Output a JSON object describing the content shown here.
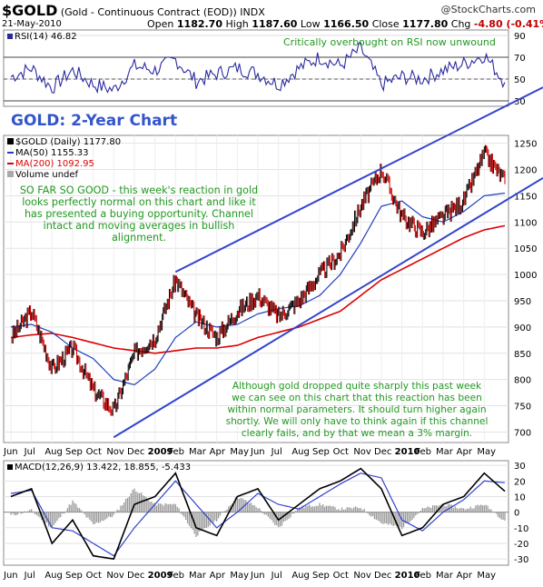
{
  "header": {
    "ticker": "$GOLD",
    "description": "(Gold - Continuous Contract (EOD))",
    "index": "INDX",
    "date": "21-May-2010",
    "open_label": "Open",
    "open": "1182.70",
    "high_label": "High",
    "high": "1187.60",
    "low_label": "Low",
    "low": "1166.50",
    "close_label": "Close",
    "close": "1177.80",
    "chg_label": "Chg",
    "chg": "-4.80 (-0.41%)",
    "brand": "@StockCharts.com"
  },
  "rsi_panel": {
    "label": "RSI(14) 46.82",
    "annotation": "Critically overbought on RSI now unwound",
    "chart_title": "GOLD: 2-Year Chart"
  },
  "price_panel": {
    "legend_main": "$GOLD (Daily) 1177.80",
    "legend_ma50": "MA(50) 1155.33",
    "legend_ma200": "MA(200) 1092.95",
    "legend_volume": "Volume undef",
    "annotation_1": [
      "SO FAR SO GOOD - this week's reaction in gold",
      "looks perfectly normal on this chart and like it",
      "has presented a buying opportunity. Channel",
      "intact and moving averages in bullish",
      "alignment."
    ],
    "annotation_2": [
      "Although gold dropped quite sharply this past week",
      "we can see on this chart that this reaction has been",
      "within normal parameters. It should turn higher again",
      "shortly. We will only have to think again if this channel",
      "clearly fails, and by that we mean a 3% margin."
    ]
  },
  "macd_panel": {
    "label": "MACD(12,26,9) 13.422, 18.855, -5.433"
  },
  "colors": {
    "up": "#000000",
    "down": "#cc0000",
    "ma50": "#1f3fbf",
    "ma200": "#dd0000",
    "channel": "#3344cc",
    "annotation": "#229922",
    "rsi": "#2a2aa0",
    "macd": "#000000",
    "signal": "#3344cc",
    "hist": "#999999"
  },
  "chart_data": [
    {
      "type": "line",
      "name": "RSI(14)",
      "y_ticks": [
        30,
        50,
        70,
        90
      ],
      "reference_lines": [
        30,
        50,
        70
      ],
      "ylim": [
        25,
        95
      ],
      "x": [
        "2008-06",
        "2008-07",
        "2008-08",
        "2008-09",
        "2008-10",
        "2008-11",
        "2008-12",
        "2009-01",
        "2009-02",
        "2009-03",
        "2009-04",
        "2009-05",
        "2009-06",
        "2009-07",
        "2009-08",
        "2009-09",
        "2009-10",
        "2009-11",
        "2009-12",
        "2010-01",
        "2010-02",
        "2010-03",
        "2010-04",
        "2010-05",
        "2010-05-21"
      ],
      "values": [
        52,
        60,
        42,
        58,
        45,
        40,
        62,
        58,
        68,
        48,
        55,
        60,
        55,
        45,
        60,
        70,
        62,
        78,
        45,
        52,
        50,
        58,
        64,
        72,
        47
      ]
    },
    {
      "type": "candlestick",
      "name": "$GOLD (Daily)",
      "y_ticks": [
        700,
        750,
        800,
        850,
        900,
        950,
        1000,
        1050,
        1100,
        1150,
        1200,
        1250
      ],
      "ylim": [
        680,
        1265
      ],
      "x_labels": [
        "Jun",
        "Jul",
        "Aug",
        "Sep",
        "Oct",
        "Nov",
        "Dec",
        "2009",
        "Feb",
        "Mar",
        "Apr",
        "May",
        "Jun",
        "Jul",
        "Aug",
        "Sep",
        "Oct",
        "Nov",
        "Dec",
        "2010",
        "Feb",
        "Mar",
        "Apr",
        "May"
      ],
      "x": [
        "2008-06",
        "2008-07",
        "2008-08",
        "2008-09",
        "2008-10",
        "2008-11",
        "2008-12",
        "2009-01",
        "2009-02",
        "2009-03",
        "2009-04",
        "2009-05",
        "2009-06",
        "2009-07",
        "2009-08",
        "2009-09",
        "2009-10",
        "2009-11",
        "2009-12",
        "2010-01",
        "2010-02",
        "2010-03",
        "2010-04",
        "2010-05",
        "2010-05-21"
      ],
      "close": [
        880,
        930,
        820,
        860,
        780,
        740,
        850,
        880,
        990,
        920,
        880,
        930,
        960,
        920,
        950,
        1000,
        1040,
        1130,
        1200,
        1110,
        1080,
        1110,
        1140,
        1230,
        1178
      ],
      "ma50": [
        900,
        905,
        890,
        860,
        840,
        800,
        790,
        820,
        880,
        910,
        900,
        905,
        925,
        935,
        940,
        960,
        1000,
        1060,
        1130,
        1140,
        1110,
        1100,
        1120,
        1150,
        1155
      ],
      "ma200": [
        880,
        885,
        888,
        880,
        870,
        860,
        855,
        850,
        855,
        860,
        860,
        865,
        880,
        890,
        900,
        915,
        930,
        960,
        990,
        1010,
        1030,
        1050,
        1070,
        1085,
        1093
      ],
      "channel_upper": {
        "from": [
          "2009-02",
          1005
        ],
        "to": [
          "2010-05-21",
          1320
        ]
      },
      "channel_lower": {
        "from": [
          "2008-11",
          690
        ],
        "to": [
          "2010-05-21",
          1140
        ]
      }
    },
    {
      "type": "line",
      "name": "MACD(12,26,9)",
      "y_ticks": [
        -30,
        -20,
        -10,
        0,
        10,
        20,
        30
      ],
      "ylim": [
        -34,
        33
      ],
      "x": [
        "2008-06",
        "2008-07",
        "2008-08",
        "2008-09",
        "2008-10",
        "2008-11",
        "2008-12",
        "2009-01",
        "2009-02",
        "2009-03",
        "2009-04",
        "2009-05",
        "2009-06",
        "2009-07",
        "2009-08",
        "2009-09",
        "2009-10",
        "2009-11",
        "2009-12",
        "2010-01",
        "2010-02",
        "2010-03",
        "2010-04",
        "2010-05",
        "2010-05-21"
      ],
      "series": [
        {
          "name": "MACD",
          "values": [
            10,
            15,
            -20,
            -5,
            -28,
            -30,
            5,
            10,
            25,
            -10,
            -15,
            10,
            15,
            -5,
            5,
            15,
            20,
            28,
            15,
            -15,
            -10,
            5,
            10,
            25,
            13.4
          ]
        },
        {
          "name": "Signal",
          "values": [
            12,
            14,
            -10,
            -12,
            -20,
            -28,
            -10,
            5,
            20,
            5,
            -10,
            0,
            12,
            5,
            2,
            10,
            18,
            25,
            22,
            -5,
            -12,
            0,
            8,
            20,
            18.9
          ]
        },
        {
          "name": "Histogram",
          "values": [
            -2,
            1,
            -10,
            7,
            -8,
            -2,
            15,
            5,
            5,
            -15,
            -5,
            10,
            3,
            -10,
            3,
            5,
            2,
            3,
            -7,
            -10,
            2,
            5,
            2,
            5,
            -5.4
          ]
        }
      ]
    }
  ],
  "x_axis_labels": [
    "Jun",
    "Jul",
    "Aug",
    "Sep",
    "Oct",
    "Nov",
    "Dec",
    "2009",
    "Feb",
    "Mar",
    "Apr",
    "May",
    "Jun",
    "Jul",
    "Aug",
    "Sep",
    "Oct",
    "Nov",
    "Dec",
    "2010",
    "Feb",
    "Mar",
    "Apr",
    "May"
  ]
}
